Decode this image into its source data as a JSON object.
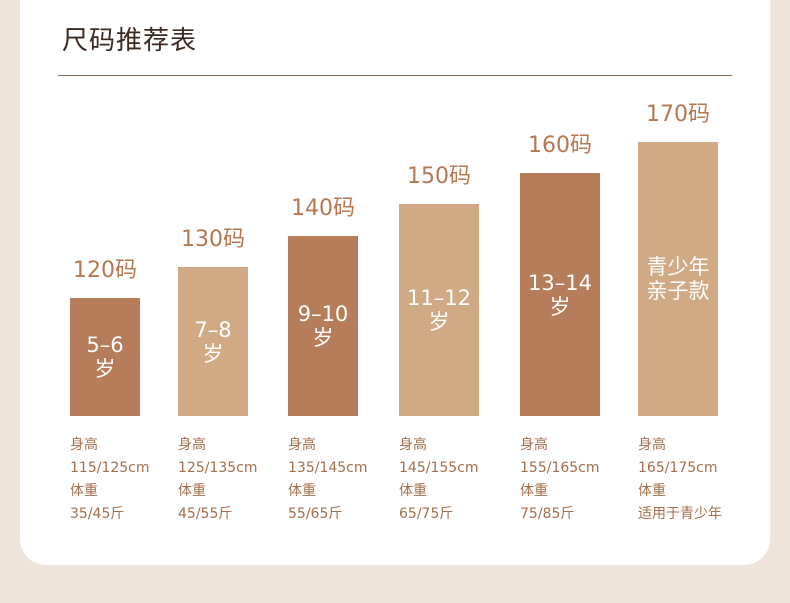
{
  "title": "尺码推荐表",
  "colors": {
    "dark": "#b57d5a",
    "light": "#d0aa84",
    "label": "#b77751",
    "text": "#a56e4c"
  },
  "chart_data": {
    "type": "bar",
    "title": "尺码推荐表",
    "categories": [
      "120码",
      "130码",
      "140码",
      "150码",
      "160码",
      "170码"
    ],
    "values": [
      120,
      130,
      140,
      150,
      160,
      170
    ],
    "ylim": [
      110,
      175
    ],
    "bars": [
      {
        "size": "120码",
        "age": "5–6\n岁",
        "height_label": "身高",
        "height": "115/125cm",
        "weight_label": "体重",
        "weight": "35/45斤",
        "shade": "dark"
      },
      {
        "size": "130码",
        "age": "7–8\n岁",
        "height_label": "身高",
        "height": "125/135cm",
        "weight_label": "体重",
        "weight": "45/55斤",
        "shade": "light"
      },
      {
        "size": "140码",
        "age": "9–10\n岁",
        "height_label": "身高",
        "height": "135/145cm",
        "weight_label": "体重",
        "weight": "55/65斤",
        "shade": "dark"
      },
      {
        "size": "150码",
        "age": "11–12\n岁",
        "height_label": "身高",
        "height": "145/155cm",
        "weight_label": "体重",
        "weight": "65/75斤",
        "shade": "light"
      },
      {
        "size": "160码",
        "age": "13–14\n岁",
        "height_label": "身高",
        "height": "155/165cm",
        "weight_label": "体重",
        "weight": "75/85斤",
        "shade": "dark"
      },
      {
        "size": "170码",
        "age": "青少年\n亲子款",
        "height_label": "身高",
        "height": "165/175cm",
        "weight_label": "体重",
        "weight": "适用于青少年",
        "shade": "light"
      }
    ]
  }
}
